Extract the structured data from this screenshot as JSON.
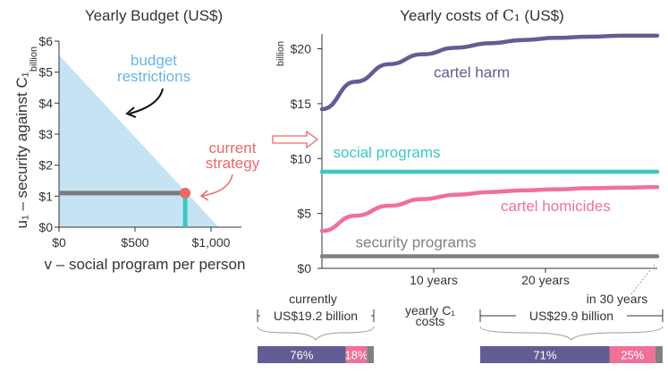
{
  "chart_data": [
    {
      "type": "area",
      "title": "Yearly Budget (US$)",
      "xlabel": "v – social program per person",
      "ylabel": "u₁ – security against C₁",
      "ylabel_unit": "billion",
      "x_ticks": [
        "$0",
        "$500",
        "$1,000"
      ],
      "y_ticks": [
        "$0",
        "$1",
        "$2",
        "$3",
        "$4",
        "$5",
        "$6"
      ],
      "xlim": [
        0,
        1200
      ],
      "ylim": [
        0,
        6
      ],
      "budget_line": {
        "x": [
          0,
          1050
        ],
        "y": [
          5.55,
          0
        ]
      },
      "current_strategy": {
        "x": 830,
        "y": 1.1
      },
      "colors": {
        "area": "#c5e3f3",
        "area_label": "#6ab6e3",
        "marker": "#e86a6a",
        "v_line": "#3cc8c0",
        "h_line": "#7a7a7a"
      },
      "annotations": {
        "budget_line1": "budget",
        "budget_line2": "restrictions",
        "current_line1": "current",
        "current_line2": "strategy"
      }
    },
    {
      "type": "line",
      "title_prefix": "Yearly costs of",
      "title_symbol": "C₁",
      "title_suffix": "(US$)",
      "ylabel_unit": "billion",
      "x_ticks": [
        "10 years",
        "20 years"
      ],
      "x_tick_values": [
        10,
        20
      ],
      "y_ticks": [
        "$0",
        "$5",
        "$10",
        "$15",
        "$20"
      ],
      "y_tick_values": [
        0,
        5,
        10,
        15,
        20
      ],
      "xlim": [
        0,
        30
      ],
      "ylim": [
        0,
        22
      ],
      "x": [
        0,
        3,
        6,
        9,
        12,
        15,
        18,
        21,
        24,
        27,
        30
      ],
      "series": [
        {
          "name": "cartel harm",
          "color": "#625d94",
          "values": [
            14.5,
            17.0,
            18.6,
            19.5,
            20.1,
            20.5,
            20.8,
            21.0,
            21.1,
            21.2,
            21.2
          ]
        },
        {
          "name": "social programs",
          "color": "#3cc8c0",
          "values": [
            8.8,
            8.8,
            8.8,
            8.8,
            8.8,
            8.8,
            8.8,
            8.8,
            8.8,
            8.8,
            8.8
          ]
        },
        {
          "name": "cartel homicides",
          "color": "#f07098",
          "values": [
            3.4,
            4.8,
            5.7,
            6.3,
            6.7,
            6.95,
            7.1,
            7.2,
            7.3,
            7.35,
            7.4
          ]
        },
        {
          "name": "security programs",
          "color": "#808080",
          "values": [
            1.1,
            1.1,
            1.1,
            1.1,
            1.1,
            1.1,
            1.1,
            1.1,
            1.1,
            1.1,
            1.1
          ]
        }
      ],
      "label_x": {
        "cartel harm": 10,
        "social programs": 1,
        "cartel homicides": 16,
        "security programs": 3
      },
      "label_offset_y": {
        "cartel harm": -1.8,
        "social programs": 1.8,
        "cartel homicides": -1.3,
        "security programs": 1.3
      }
    },
    {
      "type": "bar",
      "orientation": "stacked-horizontal",
      "title": "yearly C₁ costs",
      "title_line1": "yearly C₁",
      "title_line2": "costs",
      "groups": [
        {
          "label": "currently",
          "total": "US$19.2 billion",
          "segments": [
            {
              "name": "cartel harm",
              "value": 76,
              "label": "76%",
              "color": "#625d94"
            },
            {
              "name": "cartel homicides",
              "value": 18,
              "label": "18%",
              "color": "#f07098"
            },
            {
              "name": "security programs",
              "value": 6,
              "label": "",
              "color": "#808080"
            }
          ]
        },
        {
          "label": "in 30 years",
          "total": "US$29.9 billion",
          "segments": [
            {
              "name": "cartel harm",
              "value": 71,
              "label": "71%",
              "color": "#625d94"
            },
            {
              "name": "cartel homicides",
              "value": 25,
              "label": "25%",
              "color": "#f07098"
            },
            {
              "name": "security programs",
              "value": 4,
              "label": "",
              "color": "#808080"
            }
          ]
        }
      ]
    }
  ],
  "arrow_color": "#e86a6a"
}
